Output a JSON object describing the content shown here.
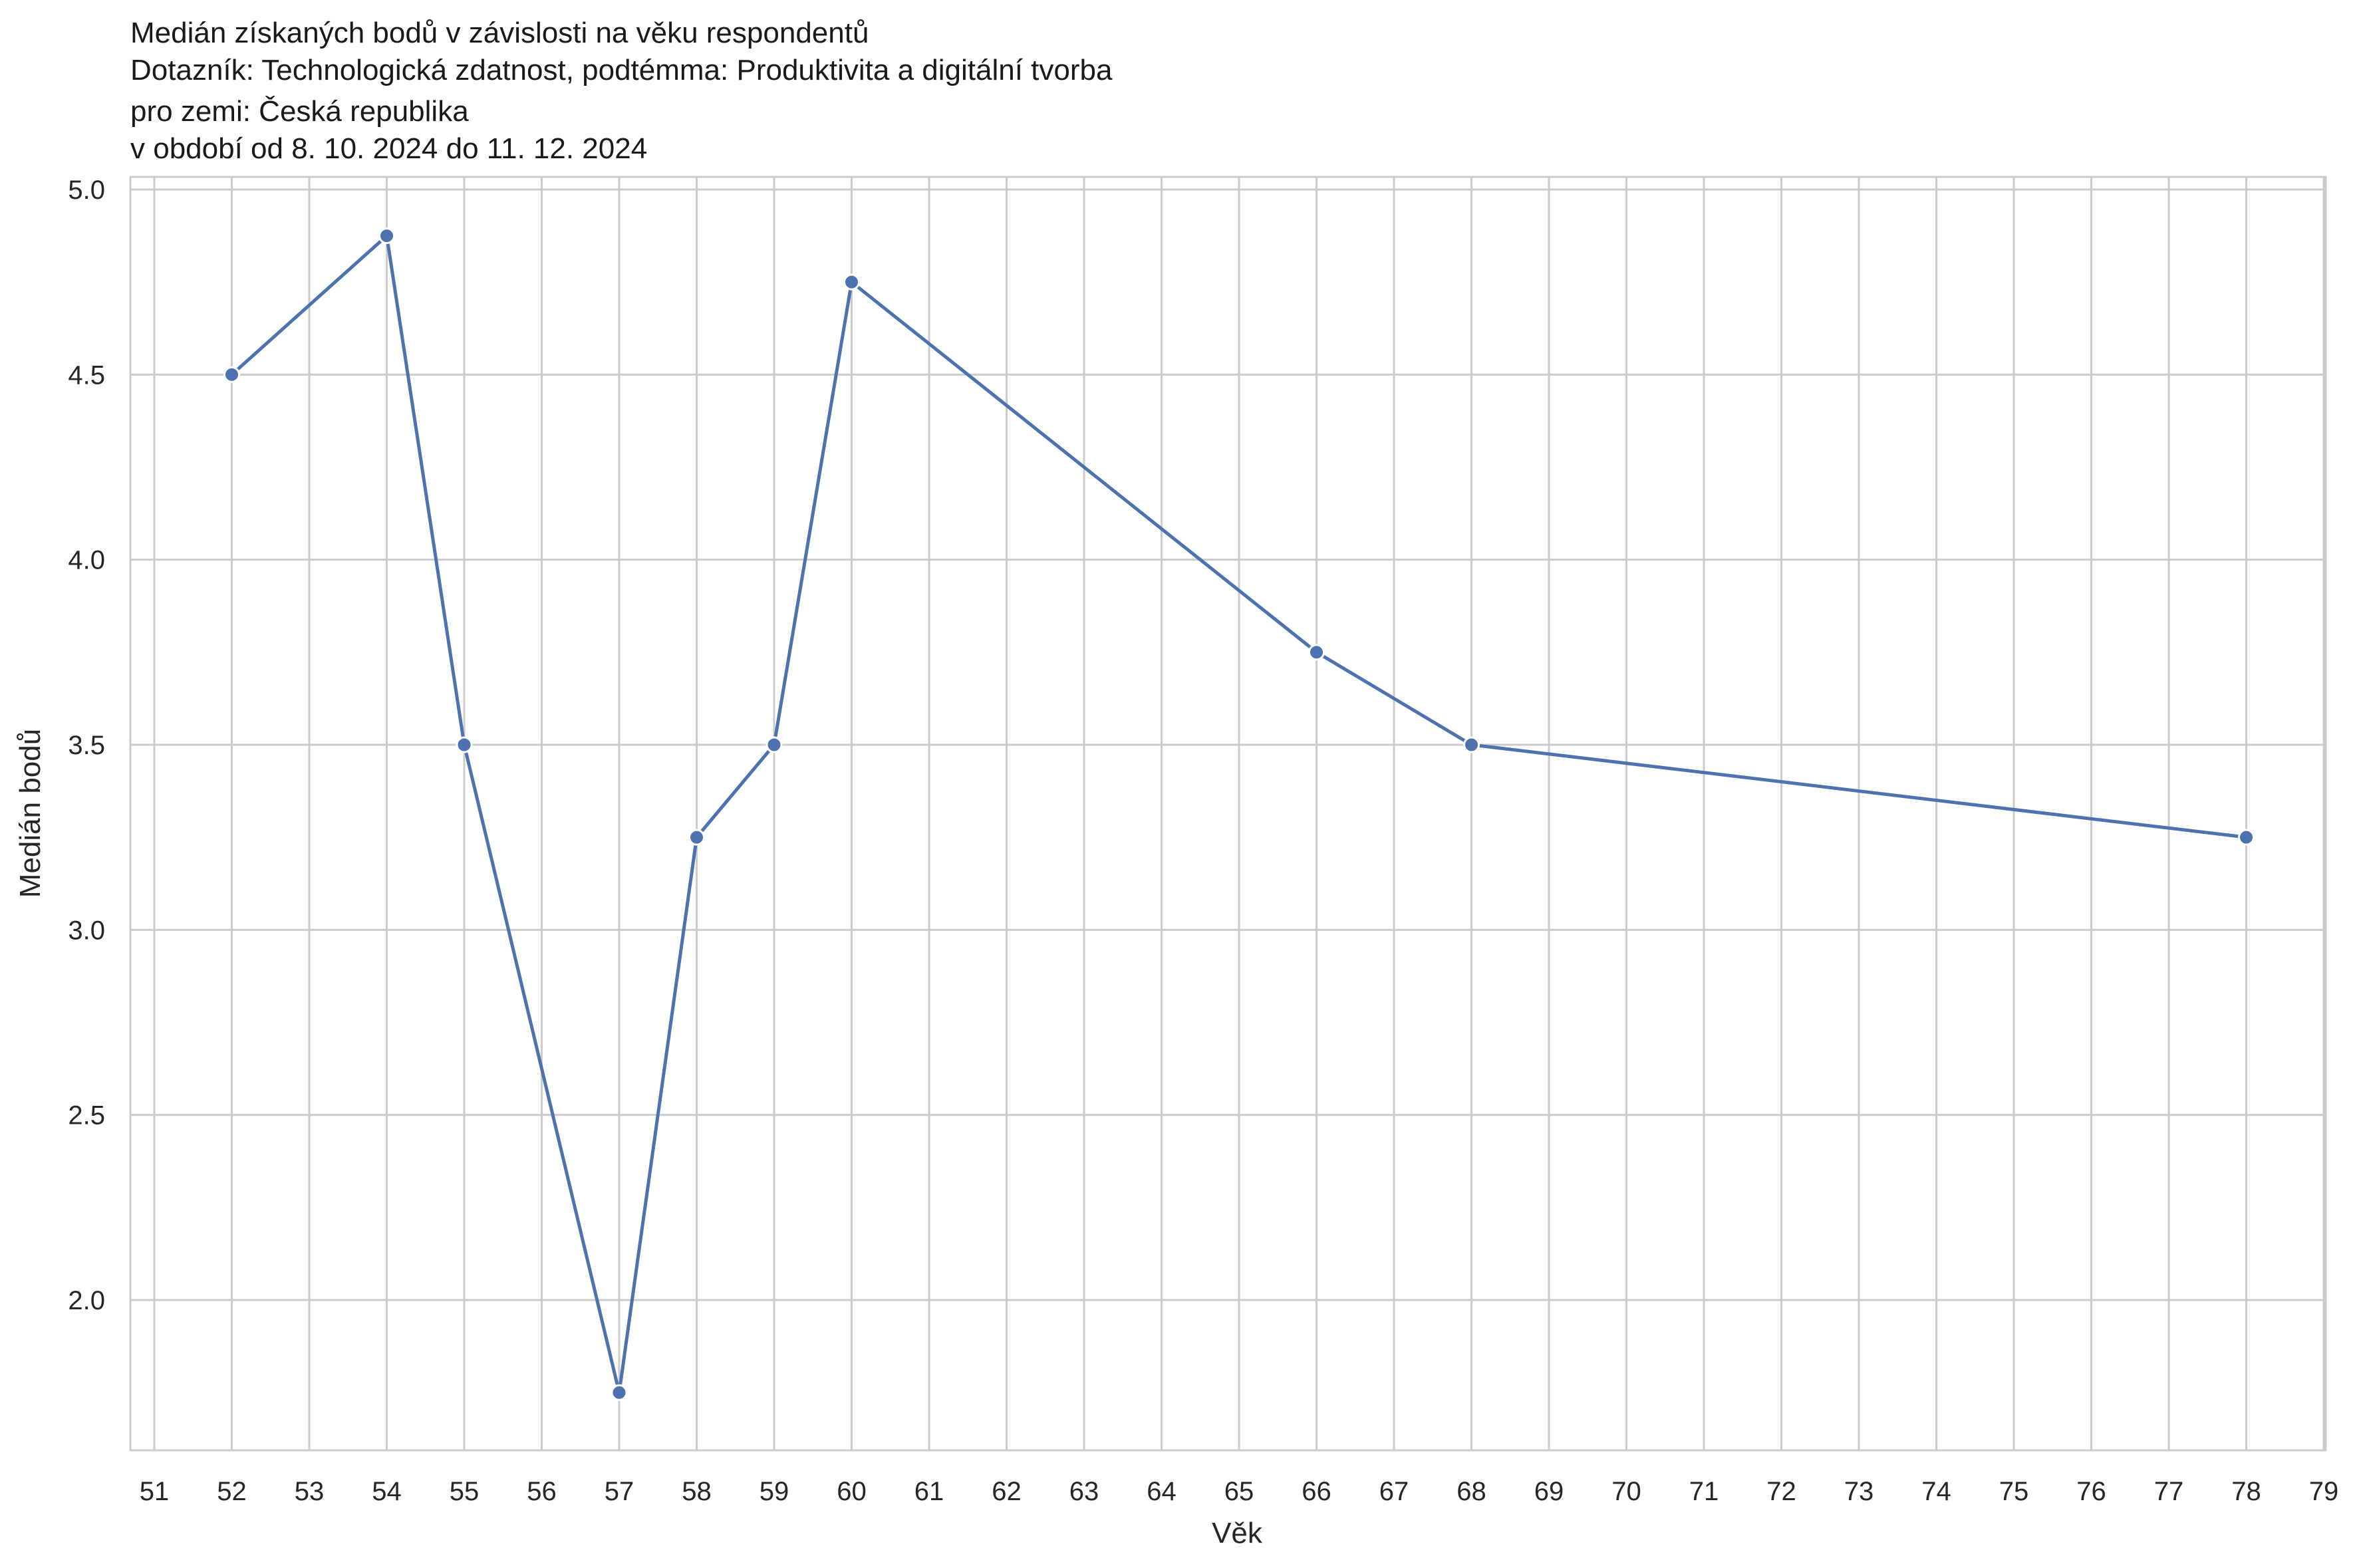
{
  "chart_data": {
    "type": "line",
    "title_lines": [
      "Medián získaných bodů v závislosti na věku respondentů",
      "Dotazník: Technologická zdatnost, podtémma: Produktivita a digitální tvorba",
      "pro zemi: Česká republika",
      "v období od 8. 10. 2024 do 11. 12. 2024"
    ],
    "xlabel": "Věk",
    "ylabel": "Medián bodů",
    "x_ticks": [
      "51",
      "52",
      "53",
      "54",
      "55",
      "56",
      "57",
      "58",
      "59",
      "60",
      "61",
      "62",
      "63",
      "64",
      "65",
      "66",
      "67",
      "68",
      "69",
      "70",
      "71",
      "72",
      "73",
      "74",
      "75",
      "76",
      "77",
      "78",
      "79"
    ],
    "y_ticks": [
      "2.0",
      "2.5",
      "3.0",
      "3.5",
      "4.0",
      "4.5",
      "5.0"
    ],
    "y_tick_values": [
      2.0,
      2.5,
      3.0,
      3.5,
      4.0,
      4.5,
      5.0
    ],
    "ylim": [
      1.6,
      5.03
    ],
    "grid": true,
    "line_color": "#4c72b0",
    "grid_color": "#cccccc",
    "series": [
      {
        "categories": [
          "52",
          "54",
          "55",
          "57",
          "58",
          "59",
          "60",
          "66",
          "68",
          "78"
        ],
        "values": [
          4.5,
          4.875,
          3.5,
          1.75,
          3.25,
          3.5,
          4.75,
          3.75,
          3.5,
          3.25
        ]
      }
    ]
  }
}
